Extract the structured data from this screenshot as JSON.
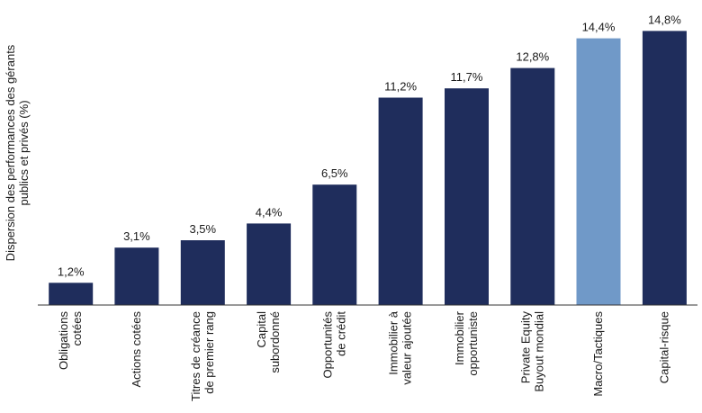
{
  "chart_data": {
    "type": "bar",
    "title": "",
    "xlabel": "",
    "ylabel": [
      "Dispersion des performances des gérants",
      "publics et privés (%)"
    ],
    "ylim": [
      0,
      15.5
    ],
    "grid": false,
    "categories": [
      [
        "Obligations",
        "cotées"
      ],
      [
        "Actions cotées"
      ],
      [
        "Titres de créance",
        "de premier rang"
      ],
      [
        "Capital",
        "subordonné"
      ],
      [
        "Opportunités",
        "de crédit"
      ],
      [
        "Immobilier à",
        "valeur ajoutée"
      ],
      [
        "Immobilier",
        "opportuniste"
      ],
      [
        "Private Equity",
        "Buyout mondial"
      ],
      [
        "Macro/Tactiques"
      ],
      [
        "Capital-risque"
      ]
    ],
    "values": [
      1.2,
      3.1,
      3.5,
      4.4,
      6.5,
      11.2,
      11.7,
      12.8,
      14.4,
      14.8
    ],
    "value_labels": [
      "1,2%",
      "3,1%",
      "3,5%",
      "4,4%",
      "6,5%",
      "11,2%",
      "11,7%",
      "12,8%",
      "14,4%",
      "14,8%"
    ],
    "colors": {
      "default": "#1f2d5c",
      "highlight": "#7099c8",
      "axis": "#333333"
    },
    "highlight_index": 8
  }
}
